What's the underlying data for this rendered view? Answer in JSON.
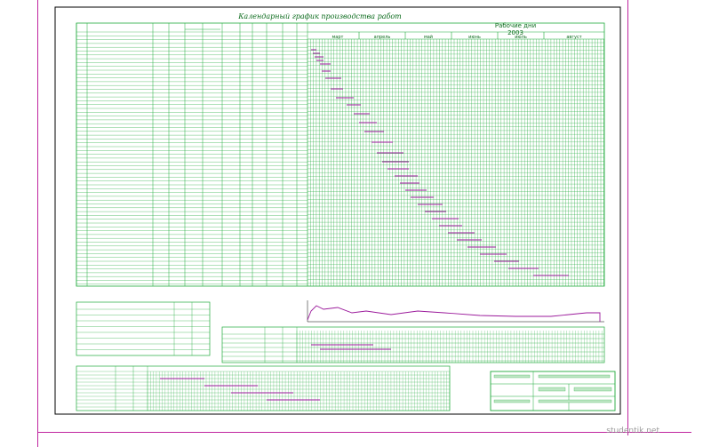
{
  "title": "Календарный график производства работ",
  "work_days_header": "Рабочие дни",
  "year": "2003",
  "months": [
    "март",
    "апрель",
    "май",
    "июнь",
    "июль",
    "август"
  ],
  "watermark": "studentik.net",
  "colors": {
    "grid": "#1faa3a",
    "text": "#0b6b1c",
    "bars": "#9b1a9b",
    "frame": "#c026a0"
  }
}
